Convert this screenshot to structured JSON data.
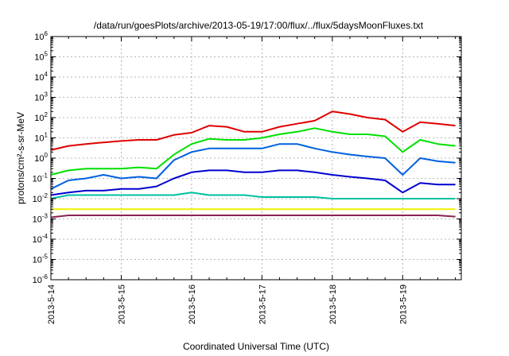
{
  "chart_data": {
    "type": "line",
    "title": "/data/run/goesPlots/archive/2013-05-19/17:00/flux/../flux/5daysMoonFluxes.txt",
    "xlabel": "Coordinated Universal Time (UTC)",
    "ylabel": "protons/cm²-s-sr-MeV",
    "y_scale": "log",
    "ylim": [
      1e-06,
      1000000.0
    ],
    "xlim": [
      "2013-5-14",
      "2013-5-19 20:00"
    ],
    "grid": true,
    "legend": "none",
    "x_tick_labels": [
      "2013-5-14",
      "2013-5-15",
      "2013-5-16",
      "2013-5-17",
      "2013-5-18",
      "2013-5-19"
    ],
    "y_tick_labels": [
      {
        "base": "10",
        "exp": "-6"
      },
      {
        "base": "10",
        "exp": "-5"
      },
      {
        "base": "10",
        "exp": "-4"
      },
      {
        "base": "10",
        "exp": "-3"
      },
      {
        "base": "10",
        "exp": "-2"
      },
      {
        "base": "10",
        "exp": "-1"
      },
      {
        "base": "10",
        "exp": "0"
      },
      {
        "base": "10",
        "exp": "1"
      },
      {
        "base": "10",
        "exp": "2"
      },
      {
        "base": "10",
        "exp": "3"
      },
      {
        "base": "10",
        "exp": "4"
      },
      {
        "base": "10",
        "exp": "5"
      },
      {
        "base": "10",
        "exp": "6"
      }
    ],
    "x": [
      "2013-05-14 00:00",
      "2013-05-14 06:00",
      "2013-05-14 12:00",
      "2013-05-14 18:00",
      "2013-05-15 00:00",
      "2013-05-15 06:00",
      "2013-05-15 12:00",
      "2013-05-15 18:00",
      "2013-05-16 00:00",
      "2013-05-16 06:00",
      "2013-05-16 12:00",
      "2013-05-16 18:00",
      "2013-05-17 00:00",
      "2013-05-17 06:00",
      "2013-05-17 12:00",
      "2013-05-17 18:00",
      "2013-05-18 00:00",
      "2013-05-18 06:00",
      "2013-05-18 12:00",
      "2013-05-18 18:00",
      "2013-05-19 00:00",
      "2013-05-19 06:00",
      "2013-05-19 12:00",
      "2013-05-19 18:00"
    ],
    "series": [
      {
        "color": "#e00000",
        "values": [
          2.5,
          4,
          5,
          6,
          7,
          8,
          8,
          14,
          18,
          40,
          35,
          20,
          20,
          35,
          50,
          70,
          200,
          150,
          100,
          80,
          20,
          60,
          50,
          40
        ]
      },
      {
        "color": "#00e000",
        "values": [
          0.15,
          0.25,
          0.3,
          0.3,
          0.3,
          0.35,
          0.3,
          1.5,
          5,
          9,
          8,
          8,
          10,
          15,
          20,
          30,
          20,
          15,
          15,
          12,
          2,
          8,
          5,
          4
        ]
      },
      {
        "color": "#0060e0",
        "values": [
          0.03,
          0.08,
          0.1,
          0.15,
          0.1,
          0.12,
          0.1,
          0.8,
          2,
          3,
          3,
          3,
          3,
          5,
          5,
          3,
          2,
          1.5,
          1.2,
          1,
          0.15,
          1,
          0.7,
          0.6
        ]
      },
      {
        "color": "#0000d0",
        "values": [
          0.015,
          0.02,
          0.025,
          0.025,
          0.03,
          0.03,
          0.04,
          0.1,
          0.2,
          0.25,
          0.25,
          0.2,
          0.2,
          0.25,
          0.25,
          0.2,
          0.15,
          0.12,
          0.1,
          0.08,
          0.02,
          0.06,
          0.05,
          0.05
        ]
      },
      {
        "color": "#00c0a0",
        "values": [
          0.01,
          0.015,
          0.015,
          0.015,
          0.015,
          0.015,
          0.015,
          0.015,
          0.02,
          0.015,
          0.015,
          0.015,
          0.012,
          0.012,
          0.012,
          0.012,
          0.01,
          0.01,
          0.01,
          0.01,
          0.01,
          0.01,
          0.01,
          0.01
        ]
      },
      {
        "color": "#f0f000",
        "values": [
          0.003,
          0.003,
          0.003,
          0.003,
          0.003,
          0.003,
          0.003,
          0.003,
          0.003,
          0.003,
          0.003,
          0.003,
          0.003,
          0.003,
          0.003,
          0.003,
          0.003,
          0.003,
          0.003,
          0.003,
          0.003,
          0.003,
          0.003,
          0.003
        ]
      },
      {
        "color": "#8b2252",
        "values": [
          0.0012,
          0.0015,
          0.0015,
          0.0015,
          0.0015,
          0.0015,
          0.0015,
          0.0015,
          0.0015,
          0.0015,
          0.0015,
          0.0015,
          0.0015,
          0.0015,
          0.0015,
          0.0015,
          0.0015,
          0.0015,
          0.0015,
          0.0015,
          0.0015,
          0.0015,
          0.0015,
          0.0013
        ]
      }
    ]
  }
}
